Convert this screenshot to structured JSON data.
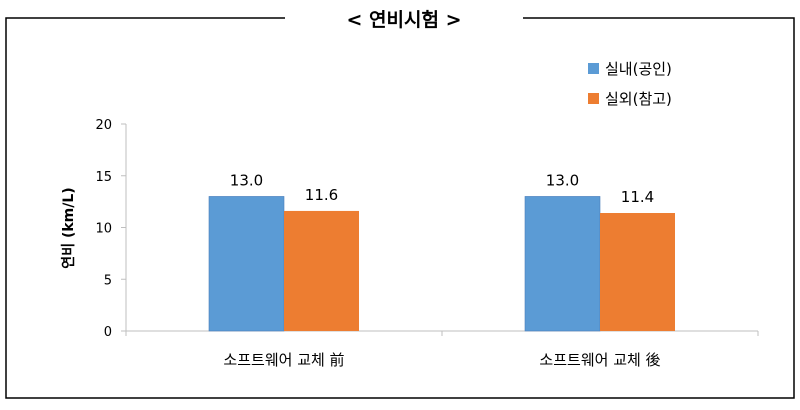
{
  "chart_data": {
    "type": "bar",
    "title": "< 연비시험 >",
    "ylabel": "연비 (km/L)",
    "xlabel": "",
    "categories": [
      "소프트웨어 교체 前",
      "소프트웨어 교체 後"
    ],
    "ylim": [
      0,
      20
    ],
    "yticks": [
      0,
      5,
      10,
      15,
      20
    ],
    "grid": false,
    "legend_position": "top-right",
    "series": [
      {
        "name": "실내(공인)",
        "values": [
          13.0,
          13.0
        ],
        "labels": [
          "13.0",
          "13.0"
        ],
        "color": "#5B9BD5"
      },
      {
        "name": "실외(참고)",
        "values": [
          11.6,
          11.4
        ],
        "labels": [
          "11.6",
          "11.4"
        ],
        "color": "#ED7D31"
      }
    ]
  },
  "colors": {
    "frame": "#000000",
    "axis": "#bfbfbf",
    "text": "#000000"
  }
}
